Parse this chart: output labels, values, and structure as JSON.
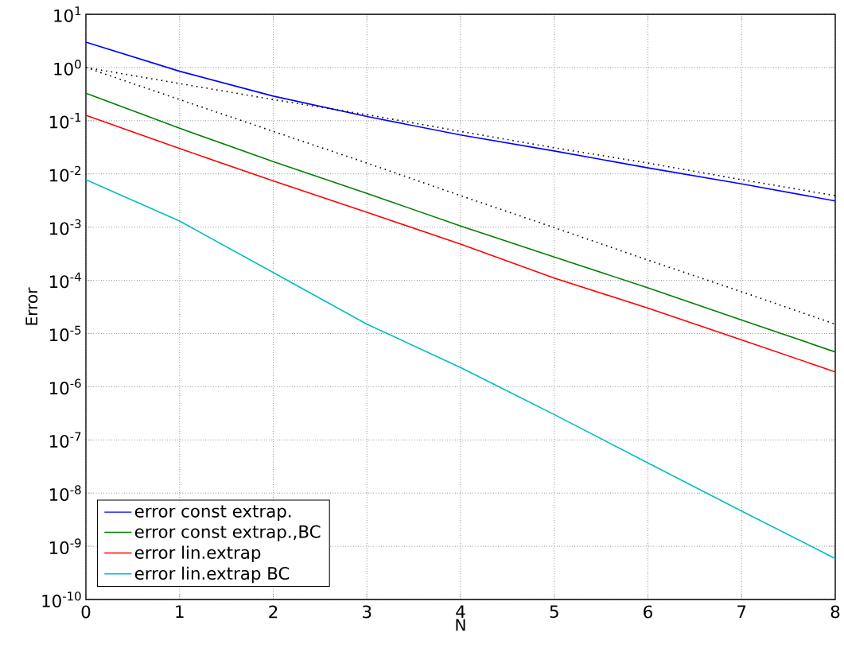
{
  "chart_data": {
    "type": "line",
    "xlabel": "N",
    "ylabel": "Error",
    "x": [
      0,
      1,
      2,
      3,
      4,
      5,
      6,
      7,
      8
    ],
    "series": [
      {
        "name": "error const extrap.",
        "color": "#0000ff",
        "values": [
          3.0,
          0.85,
          0.29,
          0.12,
          0.054,
          0.027,
          0.013,
          0.0065,
          0.0031
        ]
      },
      {
        "name": "error const extrap.,BC",
        "color": "#008000",
        "values": [
          0.33,
          0.072,
          0.017,
          0.0043,
          0.00105,
          0.000275,
          7.2e-05,
          1.8e-05,
          4.5e-06
        ]
      },
      {
        "name": "error lin.extrap",
        "color": "#ff0000",
        "values": [
          0.126,
          0.03,
          0.0074,
          0.0019,
          0.00048,
          0.00011,
          3e-05,
          7.6e-06,
          1.9e-06
        ]
      },
      {
        "name": "error lin.extrap BC",
        "color": "#00bfbf",
        "values": [
          0.0078,
          0.0013,
          0.00014,
          1.5e-05,
          2.3e-06,
          3e-07,
          3.7e-08,
          4.6e-09,
          5.9e-10
        ]
      },
      {
        "color": "#000000",
        "line_style": "dotted",
        "values": [
          1,
          0.5,
          0.25,
          0.13,
          0.063,
          0.031,
          0.016,
          0.0078,
          0.0039
        ]
      },
      {
        "color": "#000000",
        "line_style": "dotted",
        "values": [
          1,
          0.25,
          0.063,
          0.016,
          0.0039,
          0.00098,
          0.00024,
          6.1e-05,
          1.5e-05
        ]
      }
    ],
    "xlim": [
      0,
      8
    ],
    "xticks": [
      0,
      1,
      2,
      3,
      4,
      5,
      6,
      7,
      8
    ],
    "log": "y",
    "ylim": [
      1e-10,
      10
    ],
    "yticks": [
      {
        "value": 1e-10,
        "label": "10$^{-10}$"
      },
      {
        "value": 1e-09,
        "label": "10$^{-9}$"
      },
      {
        "value": 1e-08,
        "label": "10$^{-8}$"
      },
      {
        "value": 1e-07,
        "label": "10$^{-7}$"
      },
      {
        "value": 1e-06,
        "label": "10$^{-6}$"
      },
      {
        "value": 1e-05,
        "label": "10$^{-5}$"
      },
      {
        "value": 0.0001,
        "label": "10$^{-4}$"
      },
      {
        "value": 0.001,
        "label": "10$^{-3}$"
      },
      {
        "value": 0.01,
        "label": "10$^{-2}$"
      },
      {
        "value": 0.1,
        "label": "10$^{-1}$"
      },
      {
        "value": 1,
        "label": "10$^{0}$"
      },
      {
        "value": 10,
        "label": "10$^{1}$"
      }
    ],
    "grid": true,
    "legend": "bottom left",
    "marker": "none"
  }
}
